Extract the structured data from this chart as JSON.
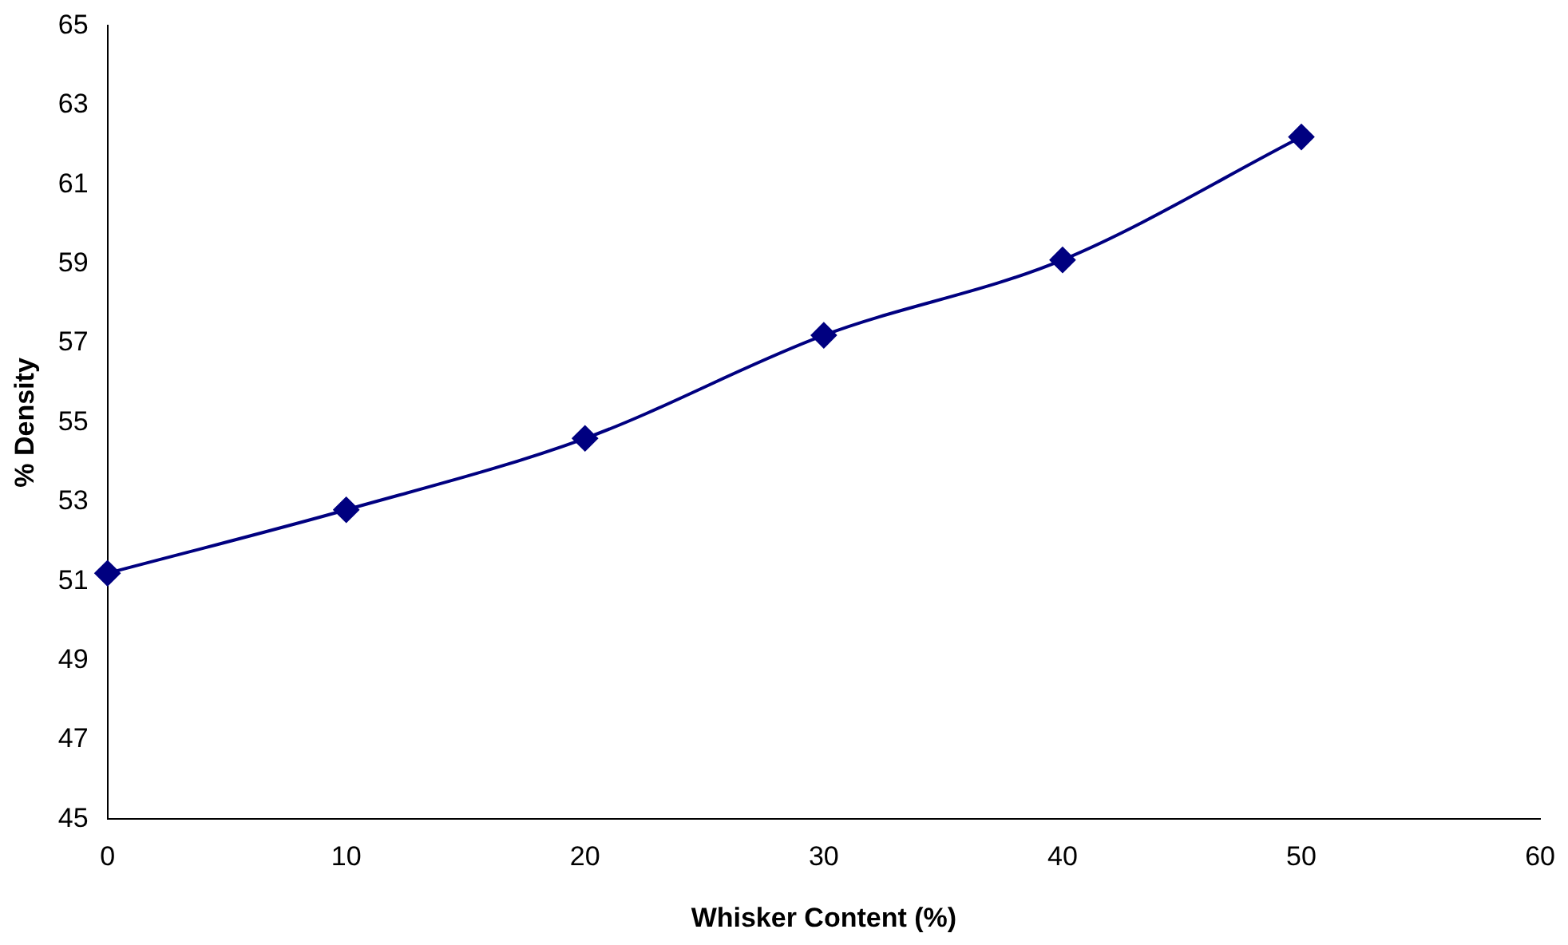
{
  "chart_data": {
    "type": "line",
    "xlabel": "Whisker Content (%)",
    "ylabel": "% Density",
    "x": [
      0,
      10,
      20,
      30,
      40,
      50
    ],
    "series": [
      {
        "color": "#000080",
        "values": [
          51.2,
          52.8,
          54.6,
          57.2,
          59.1,
          62.2
        ]
      }
    ],
    "xlim": [
      0,
      60
    ],
    "xticks": [
      0,
      10,
      20,
      30,
      40,
      50,
      60
    ],
    "ylim": [
      45,
      65
    ],
    "yticks": [
      45,
      47,
      49,
      51,
      53,
      55,
      57,
      59,
      61,
      63,
      65
    ],
    "grid": false,
    "legend": false,
    "marker": "diamond",
    "line_style": "solid"
  }
}
